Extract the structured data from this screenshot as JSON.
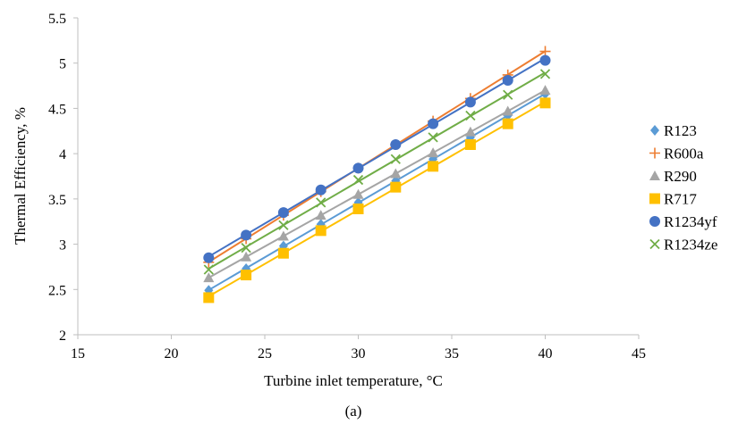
{
  "chart_data": {
    "type": "scatter",
    "title": "",
    "xlabel": "Turbine inlet temperature, °C",
    "ylabel": "Thermal Efficiency, %",
    "caption": "(a)",
    "xlim": [
      15,
      45
    ],
    "ylim": [
      2,
      5.5
    ],
    "x_ticks": [
      "15",
      "20",
      "25",
      "30",
      "35",
      "40",
      "45"
    ],
    "y_ticks": [
      "2",
      "2.5",
      "3",
      "3.5",
      "4",
      "4.5",
      "5",
      "5.5"
    ],
    "grid": false,
    "legend_position": "right",
    "trendlines": true,
    "x": [
      22,
      24,
      26,
      28,
      30,
      32,
      34,
      36,
      38,
      40
    ],
    "series": [
      {
        "name": "R123",
        "marker": "diamond",
        "color": "#5b9bd5",
        "values": [
          2.49,
          2.73,
          2.98,
          3.22,
          3.46,
          3.7,
          3.94,
          4.18,
          4.42,
          4.66
        ]
      },
      {
        "name": "R600a",
        "marker": "plus",
        "color": "#ed7d31",
        "values": [
          2.8,
          3.06,
          3.32,
          3.58,
          3.84,
          4.1,
          4.36,
          4.61,
          4.87,
          5.13
        ]
      },
      {
        "name": "R290",
        "marker": "triangle",
        "color": "#a5a5a5",
        "values": [
          2.63,
          2.86,
          3.09,
          3.32,
          3.55,
          3.78,
          4.01,
          4.24,
          4.47,
          4.7
        ]
      },
      {
        "name": "R717",
        "marker": "square",
        "color": "#ffc000",
        "values": [
          2.41,
          2.66,
          2.9,
          3.15,
          3.39,
          3.63,
          3.86,
          4.1,
          4.33,
          4.56
        ]
      },
      {
        "name": "R1234yf",
        "marker": "circle",
        "color": "#4472c4",
        "values": [
          2.85,
          3.1,
          3.35,
          3.6,
          3.84,
          4.1,
          4.33,
          4.57,
          4.81,
          5.03
        ]
      },
      {
        "name": "R1234ze",
        "marker": "x",
        "color": "#70ad47",
        "values": [
          2.72,
          2.96,
          3.21,
          3.46,
          3.71,
          3.94,
          4.18,
          4.42,
          4.65,
          4.88
        ]
      }
    ]
  }
}
